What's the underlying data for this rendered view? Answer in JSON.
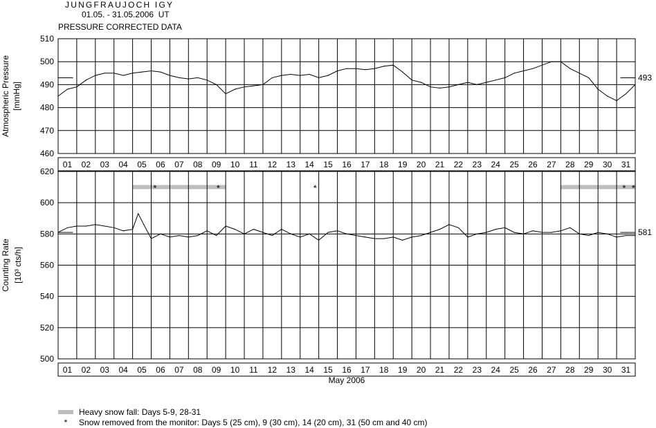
{
  "header": {
    "station": "JUNGFRAUJOCH IGY",
    "period": "01.05. - 31.05.2006  UT",
    "note": "PRESSURE CORRECTED DATA"
  },
  "legend": {
    "snow_text": "Heavy snow fall: Days 5-9, 28-31",
    "snow_marker": "*",
    "removed_text": "Snow removed from the monitor: Days 5 (25 cm), 9 (30 cm), 14 (20 cm), 31 (50 cm and 40 cm)"
  },
  "colors": {
    "line": "#000000",
    "grid": "#000000",
    "snow_band": "#bdbdbd"
  },
  "chart_data": [
    {
      "type": "line",
      "ylabel": "Atmospheric Pressure",
      "yunit": "[mmHg]",
      "ylim": [
        460,
        510
      ],
      "yticks": [
        460,
        470,
        480,
        490,
        500,
        510
      ],
      "xlim": [
        0,
        31
      ],
      "xticklabels": [
        "01",
        "02",
        "03",
        "04",
        "05",
        "06",
        "07",
        "08",
        "09",
        "10",
        "11",
        "12",
        "13",
        "14",
        "15",
        "16",
        "17",
        "18",
        "19",
        "20",
        "21",
        "22",
        "23",
        "24",
        "25",
        "26",
        "27",
        "28",
        "29",
        "30",
        "31"
      ],
      "grid": true,
      "reference_value": 493,
      "reference_label": "493",
      "series": [
        {
          "x": [
            0,
            0.5,
            1,
            1.5,
            2,
            2.5,
            3,
            3.5,
            4,
            4.5,
            5,
            5.5,
            6,
            6.5,
            7,
            7.5,
            8,
            8.5,
            9,
            9.5,
            10,
            10.5,
            11,
            11.5,
            12,
            12.5,
            13,
            13.5,
            14,
            14.5,
            15,
            15.5,
            16,
            16.5,
            17,
            17.5,
            18,
            18.5,
            19,
            19.5,
            20,
            20.5,
            21,
            21.5,
            22,
            22.5,
            23,
            23.5,
            24,
            24.5,
            25,
            25.5,
            26,
            26.5,
            27,
            27.5,
            28,
            28.5,
            29,
            29.5,
            30,
            30.5,
            31
          ],
          "values": [
            485,
            488,
            489,
            492,
            494,
            495,
            495,
            494,
            495,
            495.5,
            496,
            495.5,
            494,
            493,
            492.5,
            493,
            492,
            490,
            486,
            488,
            489,
            489.5,
            490,
            493,
            494,
            494.5,
            494,
            494.5,
            493,
            494,
            496,
            497,
            497,
            496.5,
            497,
            498,
            498.5,
            495.5,
            492,
            491,
            489,
            488.5,
            489,
            490,
            491,
            490,
            491,
            492,
            493,
            495,
            496,
            497,
            498.5,
            500,
            500,
            497,
            495,
            493,
            488,
            485,
            483,
            486,
            490
          ]
        }
      ]
    },
    {
      "type": "line",
      "ylabel": "Counting Rate",
      "yunit": "[10³ cts/h]",
      "xlabel": "May 2006",
      "ylim": [
        500,
        620
      ],
      "yticks": [
        500,
        520,
        540,
        560,
        580,
        600,
        620
      ],
      "xlim": [
        0,
        31
      ],
      "xticklabels": [
        "01",
        "02",
        "03",
        "04",
        "05",
        "06",
        "07",
        "08",
        "09",
        "10",
        "11",
        "12",
        "13",
        "14",
        "15",
        "16",
        "17",
        "18",
        "19",
        "20",
        "21",
        "22",
        "23",
        "24",
        "25",
        "26",
        "27",
        "28",
        "29",
        "30",
        "31"
      ],
      "grid": true,
      "reference_value": 581,
      "reference_label": "581",
      "snow_bands": [
        [
          4,
          9
        ],
        [
          27,
          31
        ]
      ],
      "snow_removed_days": [
        5.2,
        8.6,
        13.8,
        30.4,
        30.9
      ],
      "snow_marker_y": 610,
      "series": [
        {
          "x": [
            0,
            0.5,
            1,
            1.5,
            2,
            2.5,
            3,
            3.5,
            4,
            4.3,
            4.6,
            5,
            5.5,
            6,
            6.5,
            7,
            7.5,
            8,
            8.5,
            9,
            9.5,
            10,
            10.5,
            11,
            11.5,
            12,
            12.5,
            13,
            13.5,
            14,
            14.5,
            15,
            15.5,
            16,
            16.5,
            17,
            17.5,
            18,
            18.5,
            19,
            19.5,
            20,
            20.5,
            21,
            21.5,
            22,
            22.5,
            23,
            23.5,
            24,
            24.5,
            25,
            25.5,
            26,
            26.5,
            27,
            27.5,
            28,
            28.5,
            29,
            29.5,
            30,
            30.5,
            31
          ],
          "values": [
            581,
            584,
            585,
            585,
            586,
            585,
            584,
            582,
            583,
            593,
            586,
            577,
            580,
            578,
            579,
            578,
            579,
            582,
            579,
            585,
            583,
            580,
            583,
            581,
            579,
            583,
            580,
            578,
            580,
            576,
            581,
            582,
            580,
            579,
            578,
            577,
            577,
            578,
            576,
            578,
            579,
            581,
            583,
            586,
            584,
            578,
            580,
            581,
            583,
            584,
            581,
            580,
            582,
            581,
            581,
            582,
            584,
            580,
            579,
            581,
            580,
            578,
            579,
            579
          ]
        }
      ]
    }
  ]
}
